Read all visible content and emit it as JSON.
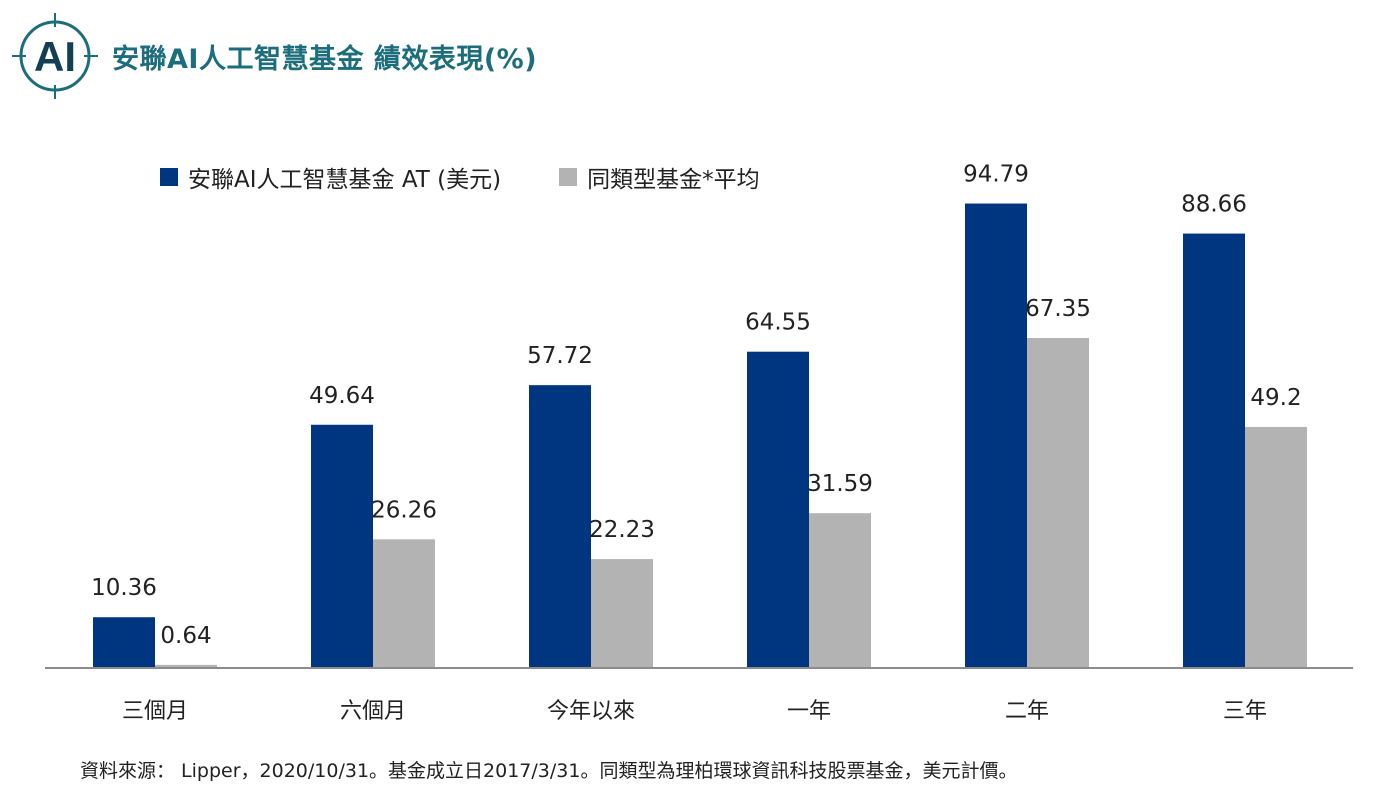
{
  "header": {
    "logo_text": "AI",
    "title": "安聯AI人工智慧基金  績效表現(%)"
  },
  "colors": {
    "title": "#1d6e7c",
    "fund": "#00357f",
    "peer": "#b3b3b3",
    "axis": "#8c8c8c"
  },
  "chart_data": {
    "type": "bar",
    "title": "安聯AI人工智慧基金  績效表現(%)",
    "categories": [
      "三個月",
      "六個月",
      "今年以來",
      "一年",
      "二年",
      "三年"
    ],
    "series": [
      {
        "name": "安聯AI人工智慧基金 AT (美元)",
        "values": [
          10.36,
          49.64,
          57.72,
          64.55,
          94.79,
          88.66
        ]
      },
      {
        "name": "同類型基金*平均",
        "values": [
          0.64,
          26.26,
          22.23,
          31.59,
          67.35,
          49.2
        ]
      }
    ],
    "xlabel": "",
    "ylabel": "",
    "ylim": [
      0,
      100
    ],
    "grid": false,
    "legend_position": "top-left"
  },
  "footer": {
    "source": "資料來源： Lipper，2020/10/31。基金成立日2017/3/31。同類型為理柏環球資訊科技股票基金，美元計價。"
  }
}
